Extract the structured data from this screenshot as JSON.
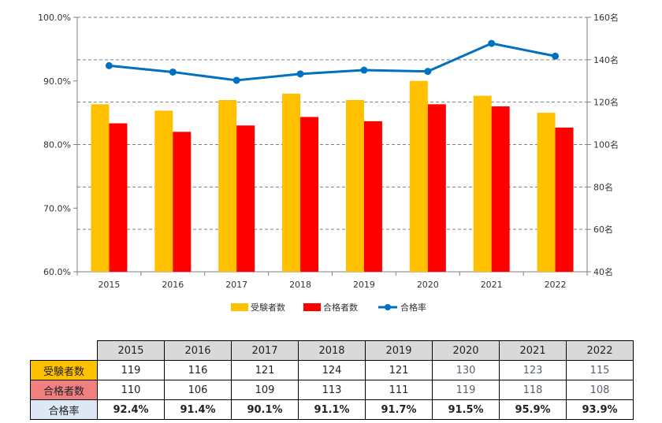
{
  "chart_data": {
    "type": "bar+line",
    "categories": [
      "2015",
      "2016",
      "2017",
      "2018",
      "2019",
      "2020",
      "2021",
      "2022"
    ],
    "series": [
      {
        "name": "受験者数",
        "type": "bar",
        "axis": "right",
        "color": "#ffc000",
        "values": [
          119,
          116,
          121,
          124,
          121,
          130,
          123,
          115
        ]
      },
      {
        "name": "合格者数",
        "type": "bar",
        "axis": "right",
        "color": "#ff0000",
        "values": [
          110,
          106,
          109,
          113,
          111,
          119,
          118,
          108
        ]
      },
      {
        "name": "合格率",
        "type": "line",
        "axis": "left",
        "color": "#0070c0",
        "values": [
          92.4,
          91.4,
          90.1,
          91.1,
          91.7,
          91.5,
          95.9,
          93.9
        ]
      }
    ],
    "left_axis": {
      "min": 60,
      "max": 100,
      "ticks": [
        "60.0%",
        "70.0%",
        "80.0%",
        "90.0%",
        "100.0%"
      ]
    },
    "right_axis": {
      "min": 40,
      "max": 160,
      "ticks": [
        "40名",
        "60名",
        "80名",
        "100名",
        "120名",
        "140名",
        "160名"
      ]
    },
    "grid": "dashed",
    "legend_position": "bottom"
  },
  "table": {
    "years": [
      "2015",
      "2016",
      "2017",
      "2018",
      "2019",
      "2020",
      "2021",
      "2022"
    ],
    "rows": [
      {
        "label": "受験者数",
        "values": [
          "119",
          "116",
          "121",
          "124",
          "121",
          "130",
          "123",
          "115"
        ]
      },
      {
        "label": "合格者数",
        "values": [
          "110",
          "106",
          "109",
          "113",
          "111",
          "119",
          "118",
          "108"
        ]
      },
      {
        "label": "合格率",
        "values": [
          "92.4%",
          "91.4%",
          "90.1%",
          "91.1%",
          "91.7%",
          "91.5%",
          "95.9%",
          "93.9%"
        ]
      }
    ]
  }
}
